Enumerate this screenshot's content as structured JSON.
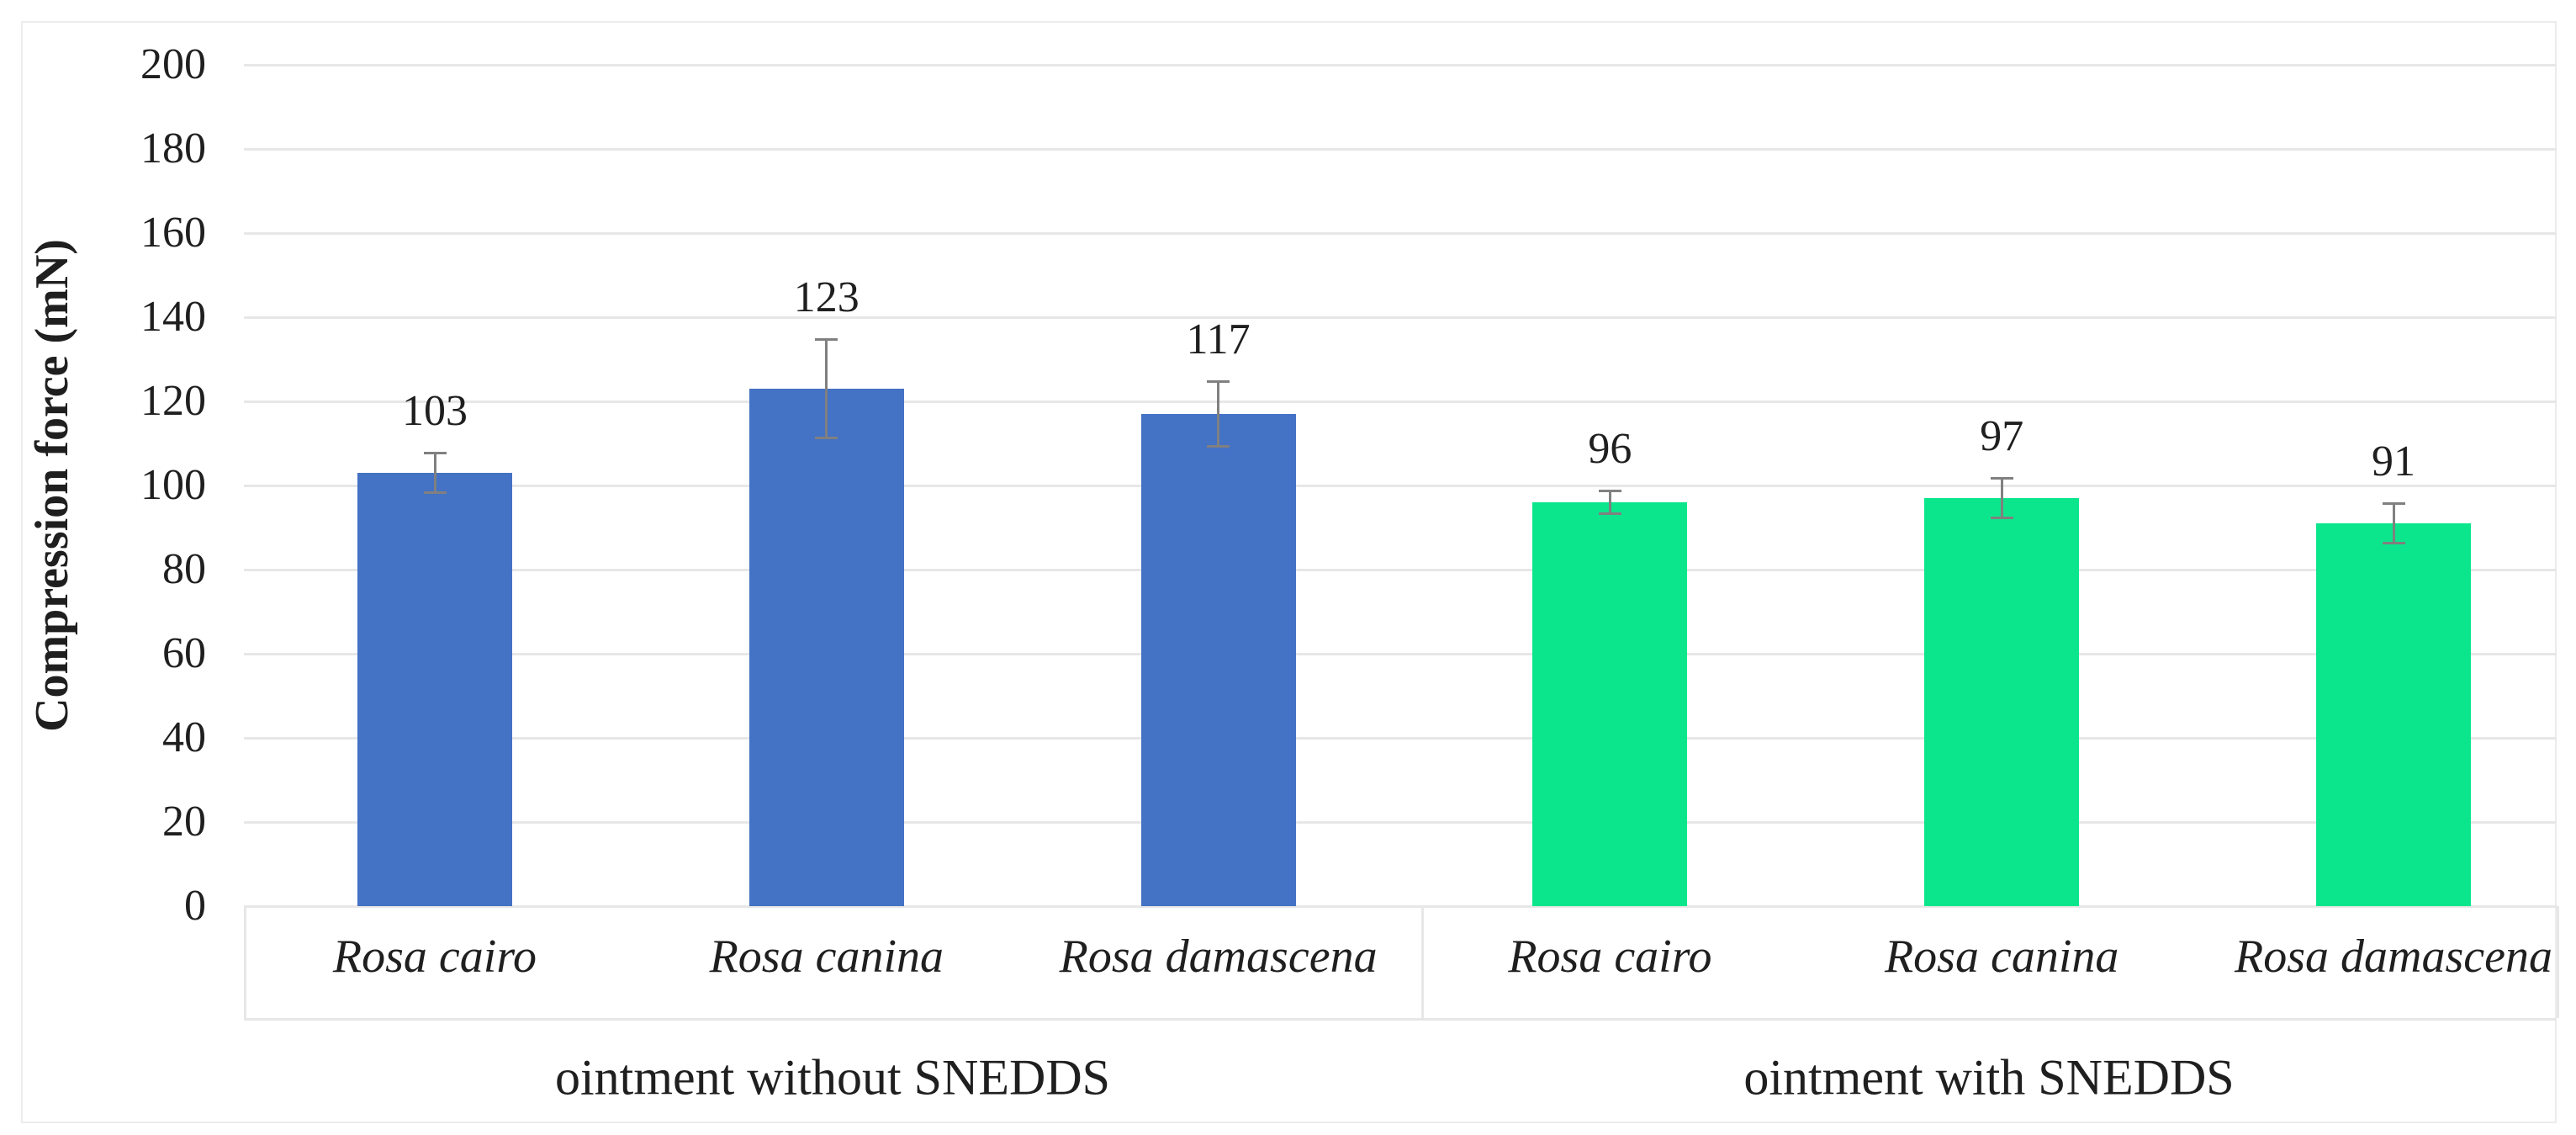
{
  "chart_data": {
    "type": "bar",
    "title": "",
    "ylabel": "Compression force (mN)",
    "xlabel": "",
    "ylim": [
      0,
      200
    ],
    "ytick_step": 20,
    "ytick_labels": [
      "200",
      "180",
      "160",
      "140",
      "120",
      "100",
      "80",
      "60",
      "40",
      "20",
      "0"
    ],
    "grid": "horizontal",
    "legend": "none",
    "error_bars": true,
    "groups": [
      {
        "label": "ointment without SNEDDS",
        "color": "#4472c4",
        "bars": [
          {
            "category": "Rosa cairo",
            "value": 103,
            "error": 5
          },
          {
            "category": "Rosa canina",
            "value": 123,
            "error": 12
          },
          {
            "category": "Rosa damascena",
            "value": 117,
            "error": 8
          }
        ]
      },
      {
        "label": "ointment with SNEDDS",
        "color": "#0be68c",
        "bars": [
          {
            "category": "Rosa cairo",
            "value": 96,
            "error": 3
          },
          {
            "category": "Rosa canina",
            "value": 97,
            "error": 5
          },
          {
            "category": "Rosa damascena",
            "value": 91,
            "error": 5
          }
        ]
      }
    ]
  }
}
